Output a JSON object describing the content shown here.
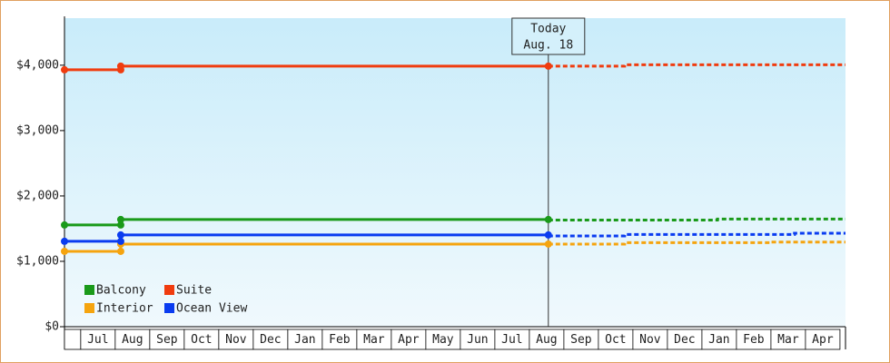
{
  "chart_data": {
    "type": "line",
    "annotation": {
      "lines": [
        "Today",
        "Aug. 18"
      ],
      "x": 13.55
    },
    "categories": [
      null,
      "Jul",
      "Aug",
      "Sep",
      "Oct",
      "Nov",
      "Dec",
      "Jan",
      "Feb",
      "Mar",
      "Apr",
      "May",
      "Jun",
      "Jul",
      "Aug",
      "Sep",
      "Oct",
      "Nov",
      "Dec",
      "Jan",
      "Feb",
      "Mar",
      "Apr"
    ],
    "xlim": [
      -0.47,
      22.16
    ],
    "ylim": [
      0,
      4720
    ],
    "yticks": [
      {
        "value": 0,
        "label": "$0"
      },
      {
        "value": 1000,
        "label": "$1,000"
      },
      {
        "value": 2000,
        "label": "$2,000"
      },
      {
        "value": 3000,
        "label": "$3,000"
      },
      {
        "value": 4000,
        "label": "$4,000"
      }
    ],
    "series": [
      {
        "name": "Balcony",
        "color": "#1a9a1a",
        "x": [
          -0.47,
          1.16,
          1.16,
          13.55
        ],
        "values": [
          1556,
          1556,
          1639,
          1639
        ],
        "forecast_x": [
          13.55,
          18.45,
          18.45,
          22.16
        ],
        "forecast_values": [
          1632,
          1632,
          1646,
          1646
        ]
      },
      {
        "name": "Suite",
        "color": "#f03c0f",
        "x": [
          -0.47,
          1.16,
          1.16,
          13.55
        ],
        "values": [
          3930,
          3930,
          3986,
          3986
        ],
        "forecast_x": [
          13.55,
          15.76,
          15.76,
          22.16
        ],
        "forecast_values": [
          3986,
          3986,
          4007,
          4007
        ]
      },
      {
        "name": "Interior",
        "color": "#f5a40f",
        "x": [
          -0.47,
          1.16,
          1.16,
          13.55
        ],
        "values": [
          1153,
          1153,
          1264,
          1264
        ],
        "forecast_x": [
          13.55,
          15.76,
          15.76,
          19.97,
          19.97,
          22.16
        ],
        "forecast_values": [
          1264,
          1264,
          1285,
          1285,
          1295,
          1295
        ]
      },
      {
        "name": "Ocean View",
        "color": "#0a3cf0",
        "x": [
          -0.47,
          1.16,
          1.16,
          13.55
        ],
        "values": [
          1306,
          1306,
          1403,
          1403
        ],
        "forecast_x": [
          13.55,
          15.76,
          15.76,
          20.68,
          20.68,
          22.16
        ],
        "forecast_values": [
          1389,
          1389,
          1410,
          1410,
          1430,
          1430
        ]
      }
    ]
  }
}
